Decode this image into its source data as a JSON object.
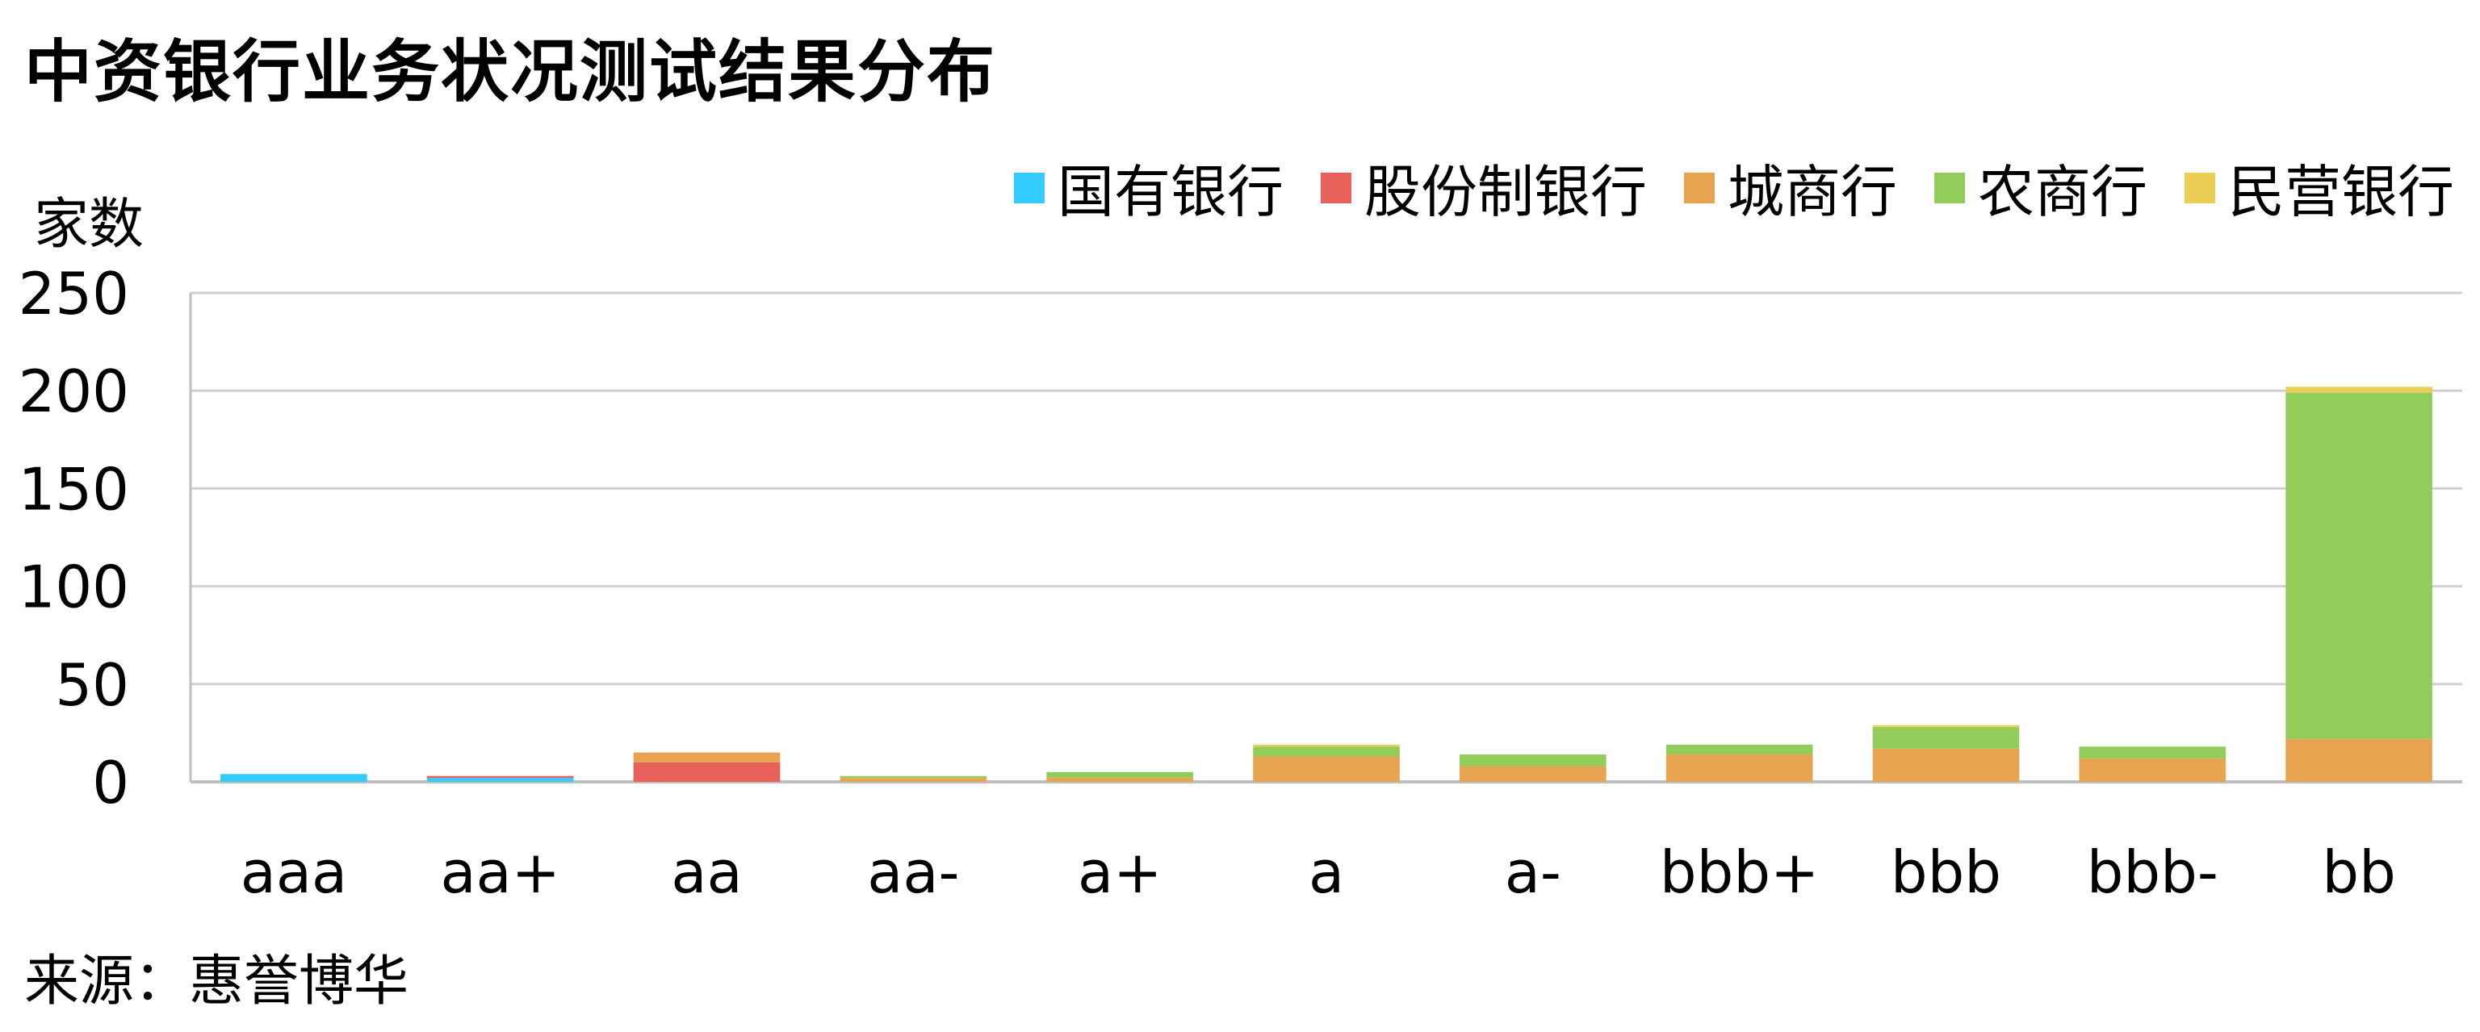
{
  "title": "中资银行业务状况测试结果分布",
  "y_unit_label": "家数",
  "source": "来源：惠誉博华",
  "legend": [
    {
      "name": "国有银行",
      "color": "#33ccff"
    },
    {
      "name": "股份制银行",
      "color": "#e8605a"
    },
    {
      "name": "城商行",
      "color": "#e8a350"
    },
    {
      "name": "农商行",
      "color": "#92cd5c"
    },
    {
      "name": "民营银行",
      "color": "#ebcf55"
    }
  ],
  "chart_data": {
    "type": "bar",
    "stacked": true,
    "categories": [
      "aaa",
      "aa+",
      "aa",
      "aa-",
      "a+",
      "a",
      "a-",
      "bbb+",
      "bbb",
      "bbb-",
      "bb"
    ],
    "series": [
      {
        "name": "国有银行",
        "color": "#33ccff",
        "values": [
          4,
          2,
          0,
          0,
          0,
          0,
          0,
          0,
          0,
          0,
          0
        ]
      },
      {
        "name": "股份制银行",
        "color": "#e8605a",
        "values": [
          0,
          1,
          10,
          0,
          0,
          0,
          0,
          0,
          0,
          0,
          0
        ]
      },
      {
        "name": "城商行",
        "color": "#e8a350",
        "values": [
          0,
          0,
          5,
          2,
          2,
          13,
          8,
          14,
          17,
          12,
          22
        ]
      },
      {
        "name": "农商行",
        "color": "#92cd5c",
        "values": [
          0,
          0,
          0,
          1,
          3,
          5,
          6,
          5,
          11,
          6,
          177
        ]
      },
      {
        "name": "民营银行",
        "color": "#ebcf55",
        "values": [
          0,
          0,
          0,
          0,
          0,
          1,
          0,
          0,
          1,
          0,
          3
        ]
      }
    ],
    "yticks": [
      "0",
      "50",
      "100",
      "150",
      "200",
      "250"
    ],
    "ylim": [
      0,
      250
    ],
    "grid": true,
    "legend_position": "top-right"
  }
}
